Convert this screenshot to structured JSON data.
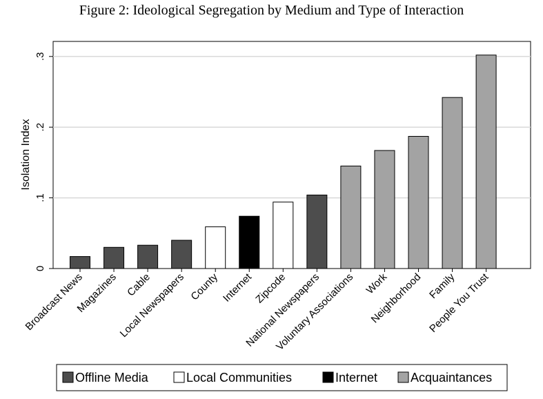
{
  "figure_title": "Figure 2: Ideological Segregation by Medium and Type of Interaction",
  "chart_data": {
    "type": "bar",
    "title": "Figure 2: Ideological Segregation by Medium and Type of Interaction",
    "xlabel": "",
    "ylabel": "Isolation Index",
    "ylim": [
      0,
      0.32
    ],
    "yticks": [
      0,
      0.1,
      0.2,
      0.3
    ],
    "ytick_labels": [
      "0",
      ".1",
      ".2",
      ".3"
    ],
    "grid": true,
    "legend_position": "bottom",
    "categories": [
      "Broadcast News",
      "Magazines",
      "Cable",
      "Local Newspapers",
      "County",
      "Internet",
      "Zipcode",
      "National Newspapers",
      "Voluntary Associations",
      "Work",
      "Neighborhood",
      "Family",
      "People You Trust"
    ],
    "values": [
      0.017,
      0.03,
      0.033,
      0.04,
      0.059,
      0.074,
      0.094,
      0.104,
      0.145,
      0.167,
      0.187,
      0.242,
      0.302
    ],
    "groups": [
      "Offline Media",
      "Offline Media",
      "Offline Media",
      "Offline Media",
      "Local Communities",
      "Internet",
      "Local Communities",
      "Offline Media",
      "Acquaintances",
      "Acquaintances",
      "Acquaintances",
      "Acquaintances",
      "Acquaintances"
    ],
    "legend": [
      {
        "name": "Offline Media",
        "color": "#4d4d4d"
      },
      {
        "name": "Local Communities",
        "color": "#ffffff"
      },
      {
        "name": "Internet",
        "color": "#000000"
      },
      {
        "name": "Acquaintances",
        "color": "#a3a3a3"
      }
    ]
  }
}
